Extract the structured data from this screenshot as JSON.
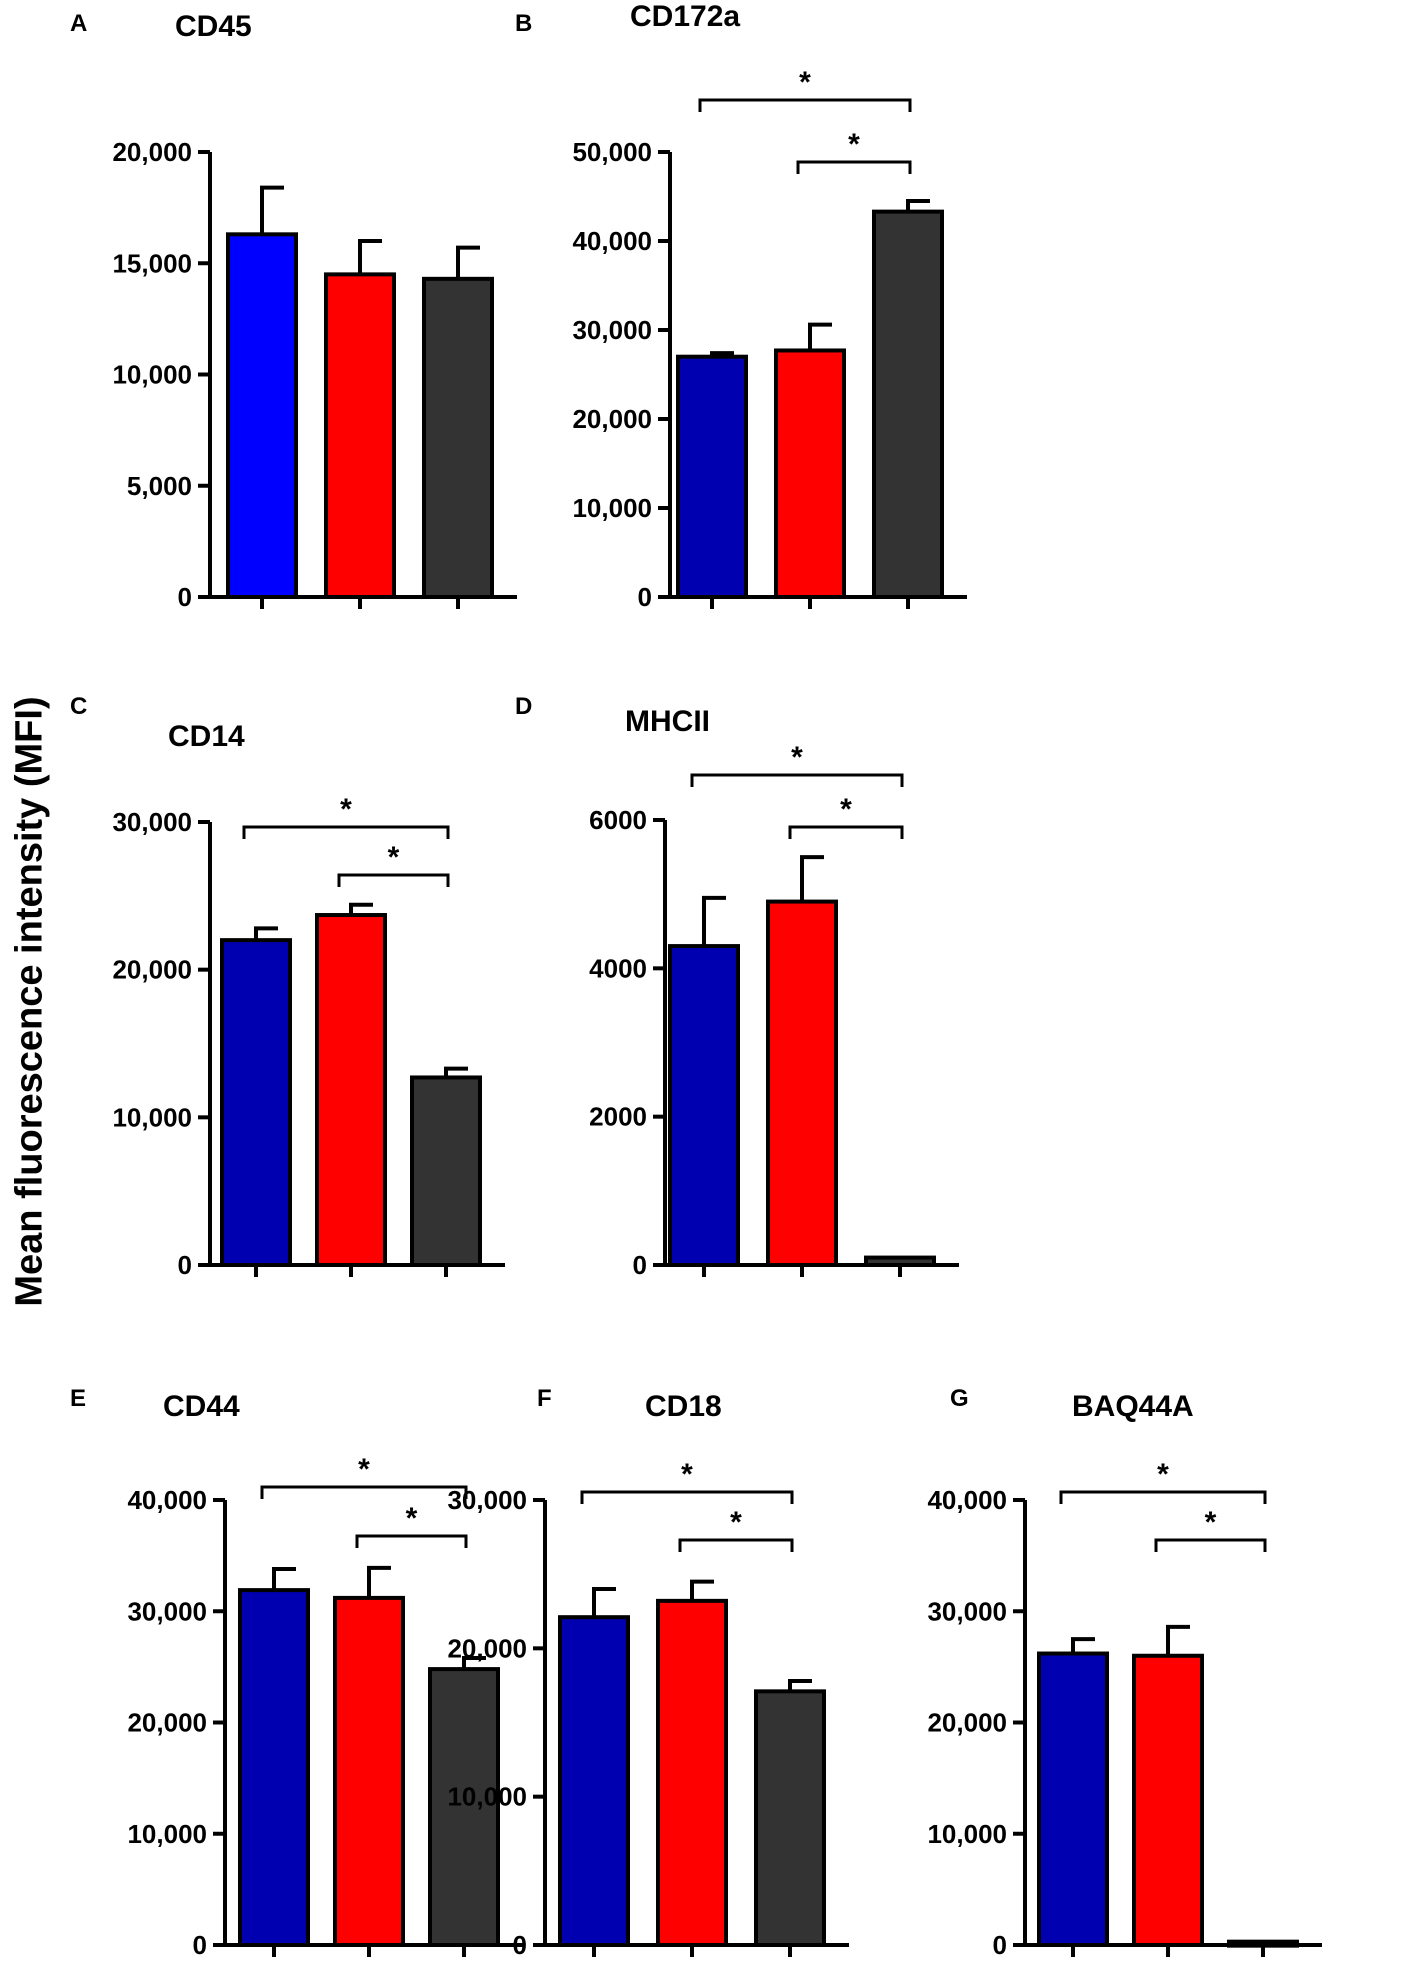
{
  "figure": {
    "ylabel": "Mean fluorescence intensity (MFI)",
    "colors": {
      "group1": "#0000FF",
      "group1_dark": "#0000B0",
      "group2": "#FF0000",
      "group3": "#333333",
      "axis": "#000000"
    }
  },
  "chart_data": [
    {
      "id": "A",
      "letter": "A",
      "title": "CD45",
      "type": "bar",
      "categories": [
        "",
        "",
        ""
      ],
      "values": [
        16300,
        14500,
        14300
      ],
      "errors": [
        2100,
        1500,
        1400
      ],
      "colors": [
        "#0000FF",
        "#FF0000",
        "#333333"
      ],
      "ylim": [
        0,
        20000
      ],
      "yticks": [
        0,
        5000,
        10000,
        15000,
        20000
      ],
      "ytick_labels": [
        "0",
        "5,000",
        "10,000",
        "15,000",
        "20,000"
      ],
      "sig": []
    },
    {
      "id": "B",
      "letter": "B",
      "title": "CD172a",
      "type": "bar",
      "categories": [
        "",
        "",
        ""
      ],
      "values": [
        27000,
        27700,
        43300
      ],
      "errors": [
        400,
        2900,
        1200
      ],
      "colors": [
        "#0000B0",
        "#FF0000",
        "#333333"
      ],
      "ylim": [
        0,
        50000
      ],
      "yticks": [
        0,
        10000,
        20000,
        30000,
        40000,
        50000
      ],
      "ytick_labels": [
        "0",
        "10,000",
        "20,000",
        "30,000",
        "40,000",
        "50,000"
      ],
      "sig": [
        {
          "from": 0,
          "to": 2,
          "label": "*"
        },
        {
          "from": 1,
          "to": 2,
          "label": "*"
        }
      ]
    },
    {
      "id": "C",
      "letter": "C",
      "title": "CD14",
      "type": "bar",
      "categories": [
        "",
        "",
        ""
      ],
      "values": [
        22000,
        23700,
        12700
      ],
      "errors": [
        800,
        700,
        600
      ],
      "colors": [
        "#0000B0",
        "#FF0000",
        "#333333"
      ],
      "ylim": [
        0,
        30000
      ],
      "yticks": [
        0,
        10000,
        20000,
        30000
      ],
      "ytick_labels": [
        "0",
        "10,000",
        "20,000",
        "30,000"
      ],
      "sig": [
        {
          "from": 0,
          "to": 2,
          "label": "*"
        },
        {
          "from": 1,
          "to": 2,
          "label": "*"
        }
      ]
    },
    {
      "id": "D",
      "letter": "D",
      "title": "MHCII",
      "type": "bar",
      "categories": [
        "",
        "",
        ""
      ],
      "values": [
        4300,
        4900,
        100
      ],
      "errors": [
        650,
        600,
        0
      ],
      "colors": [
        "#0000B0",
        "#FF0000",
        "#333333"
      ],
      "ylim": [
        0,
        6000
      ],
      "yticks": [
        0,
        2000,
        4000,
        6000
      ],
      "ytick_labels": [
        "0",
        "2000",
        "4000",
        "6000"
      ],
      "sig": [
        {
          "from": 0,
          "to": 2,
          "label": "*"
        },
        {
          "from": 1,
          "to": 2,
          "label": "*"
        }
      ]
    },
    {
      "id": "E",
      "letter": "E",
      "title": "CD44",
      "type": "bar",
      "categories": [
        "",
        "",
        ""
      ],
      "values": [
        31900,
        31200,
        24800
      ],
      "errors": [
        1900,
        2700,
        1000
      ],
      "colors": [
        "#0000B0",
        "#FF0000",
        "#333333"
      ],
      "ylim": [
        0,
        40000
      ],
      "yticks": [
        0,
        10000,
        20000,
        30000,
        40000
      ],
      "ytick_labels": [
        "0",
        "10,000",
        "20,000",
        "30,000",
        "40,000"
      ],
      "sig": [
        {
          "from": 0,
          "to": 2,
          "label": "*"
        },
        {
          "from": 1,
          "to": 2,
          "label": "*"
        }
      ]
    },
    {
      "id": "F",
      "letter": "F",
      "title": "CD18",
      "type": "bar",
      "categories": [
        "",
        "",
        ""
      ],
      "values": [
        22100,
        23200,
        17100
      ],
      "errors": [
        1900,
        1300,
        700
      ],
      "colors": [
        "#0000B0",
        "#FF0000",
        "#333333"
      ],
      "ylim": [
        0,
        30000
      ],
      "yticks": [
        0,
        10000,
        20000,
        30000
      ],
      "ytick_labels": [
        "0",
        "10,000",
        "20,000",
        "30,000"
      ],
      "sig": [
        {
          "from": 0,
          "to": 2,
          "label": "*"
        },
        {
          "from": 1,
          "to": 2,
          "label": "*"
        }
      ]
    },
    {
      "id": "G",
      "letter": "G",
      "title": "BAQ44A",
      "type": "bar",
      "categories": [
        "",
        "",
        ""
      ],
      "values": [
        26200,
        26000,
        300
      ],
      "errors": [
        1300,
        2600,
        0
      ],
      "colors": [
        "#0000B0",
        "#FF0000",
        "#333333"
      ],
      "ylim": [
        0,
        40000
      ],
      "yticks": [
        0,
        10000,
        20000,
        30000,
        40000
      ],
      "ytick_labels": [
        "0",
        "10,000",
        "20,000",
        "30,000",
        "40,000"
      ],
      "sig": [
        {
          "from": 0,
          "to": 2,
          "label": "*"
        },
        {
          "from": 1,
          "to": 2,
          "label": "*"
        }
      ]
    }
  ]
}
